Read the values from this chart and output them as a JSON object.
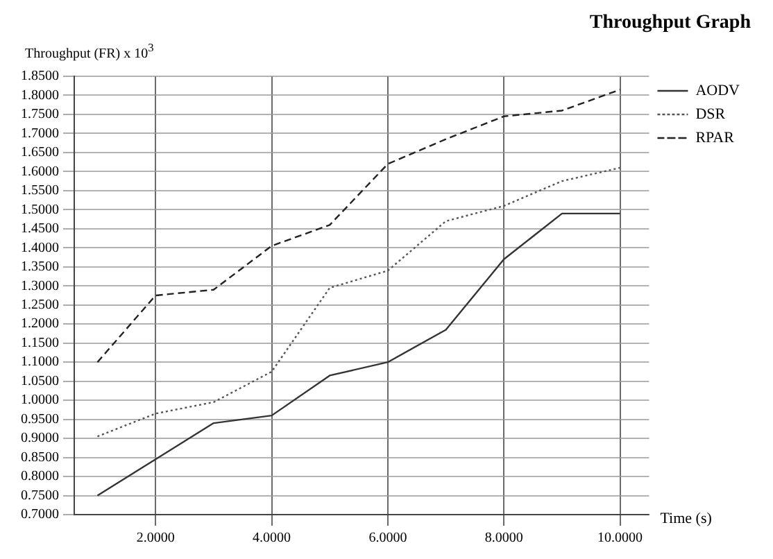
{
  "chart_data": {
    "type": "line",
    "title": "Throughput Graph",
    "ylabel": "Throughput (FR)  x 10$^{3}$",
    "xlabel": "Time (s)",
    "x": [
      1,
      2,
      3,
      4,
      5,
      6,
      7,
      8,
      9,
      10
    ],
    "series": [
      {
        "name": "AODV",
        "color": "#333333",
        "line_style": "solid",
        "values": [
          0.75,
          0.845,
          0.94,
          0.96,
          1.065,
          1.1,
          1.185,
          1.37,
          1.49,
          1.49
        ]
      },
      {
        "name": "DSR",
        "color": "#555555",
        "line_style": "dotted",
        "values": [
          0.905,
          0.965,
          0.995,
          1.075,
          1.295,
          1.34,
          1.47,
          1.51,
          1.575,
          1.61
        ]
      },
      {
        "name": "RPAR",
        "color": "#222222",
        "line_style": "dashed",
        "values": [
          1.1,
          1.275,
          1.29,
          1.405,
          1.46,
          1.62,
          1.685,
          1.745,
          1.76,
          1.815
        ]
      }
    ],
    "xlim": [
      0.6,
      10.5
    ],
    "xticks": [
      {
        "value": 2,
        "label": "2.0000"
      },
      {
        "value": 4,
        "label": "4.0000"
      },
      {
        "value": 6,
        "label": "6.0000"
      },
      {
        "value": 8,
        "label": "8.0000"
      },
      {
        "value": 10,
        "label": "10.0000"
      }
    ],
    "ylim": [
      0.7,
      1.85
    ],
    "yticks": [
      {
        "value": 0.7,
        "label": "0.7000"
      },
      {
        "value": 0.75,
        "label": "0.7500"
      },
      {
        "value": 0.8,
        "label": "0.8000"
      },
      {
        "value": 0.85,
        "label": "0.8500"
      },
      {
        "value": 0.9,
        "label": "0.9000"
      },
      {
        "value": 0.95,
        "label": "0.9500"
      },
      {
        "value": 1.0,
        "label": "1.0000"
      },
      {
        "value": 1.05,
        "label": "1.0500"
      },
      {
        "value": 1.1,
        "label": "1.1000"
      },
      {
        "value": 1.15,
        "label": "1.1500"
      },
      {
        "value": 1.2,
        "label": "1.2000"
      },
      {
        "value": 1.25,
        "label": "1.2500"
      },
      {
        "value": 1.3,
        "label": "1.3000"
      },
      {
        "value": 1.35,
        "label": "1.3500"
      },
      {
        "value": 1.4,
        "label": "1.4000"
      },
      {
        "value": 1.45,
        "label": "1.4500"
      },
      {
        "value": 1.5,
        "label": "1.5000"
      },
      {
        "value": 1.55,
        "label": "1.5500"
      },
      {
        "value": 1.6,
        "label": "1.6000"
      },
      {
        "value": 1.65,
        "label": "1.6500"
      },
      {
        "value": 1.7,
        "label": "1.7000"
      },
      {
        "value": 1.75,
        "label": "1.7500"
      },
      {
        "value": 1.8,
        "label": "1.8000"
      },
      {
        "value": 1.85,
        "label": "1.8500"
      }
    ],
    "grid": true,
    "legend": "top right",
    "marker": "none"
  }
}
